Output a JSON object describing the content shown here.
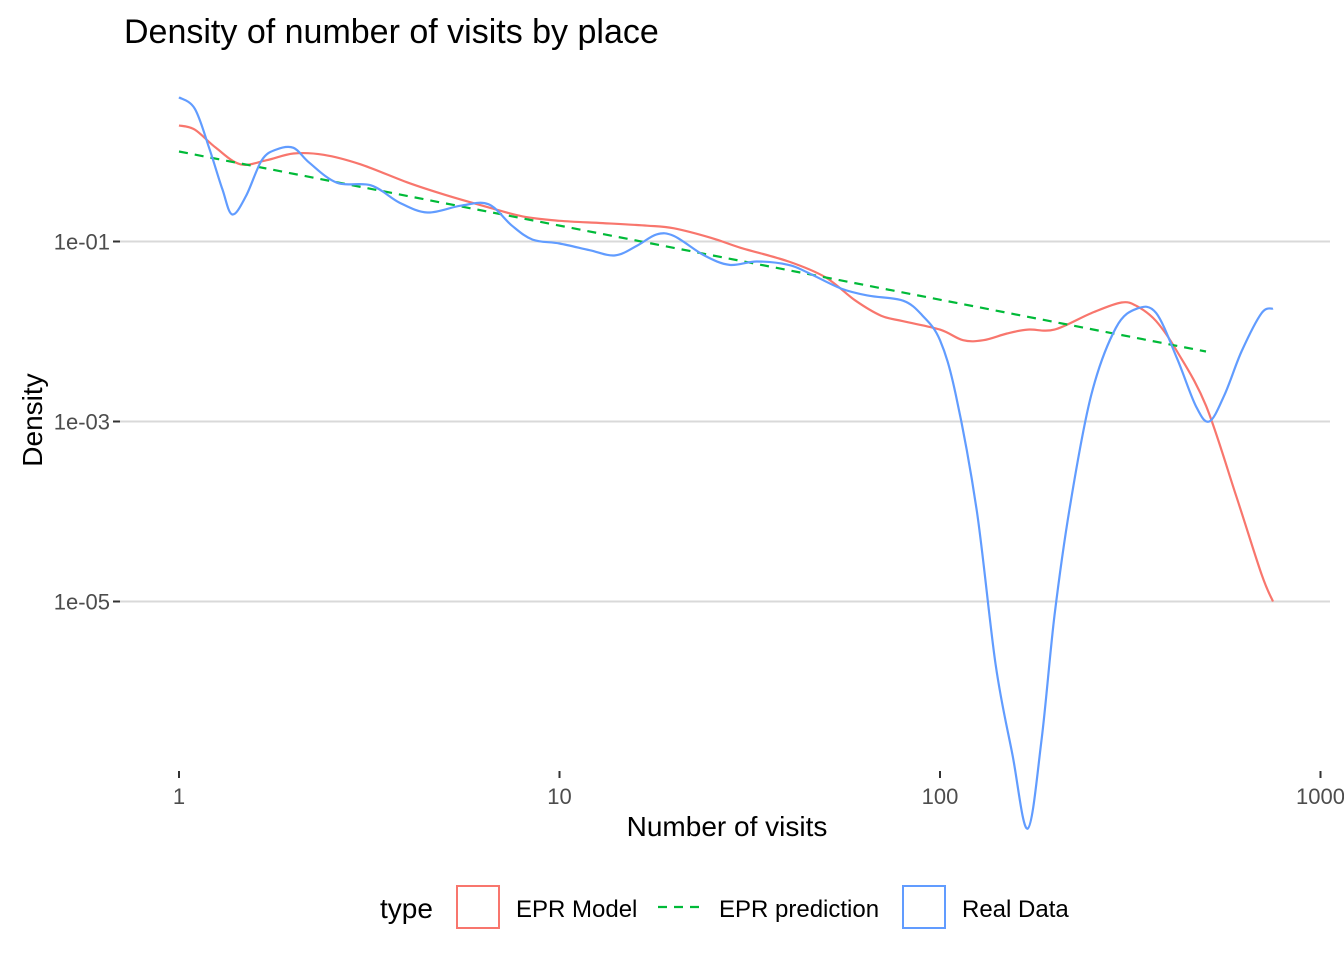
{
  "chart_data": {
    "type": "line",
    "title": "Density of number of visits by place",
    "xlabel": "Number of visits",
    "ylabel": "Density",
    "xscale": "log10",
    "yscale": "log10",
    "xlim": [
      0.9,
      1000
    ],
    "ylim": [
      5e-08,
      8
    ],
    "xticks": [
      1,
      10,
      100,
      1000
    ],
    "xtick_labels": [
      "1",
      "10",
      "100",
      "1000"
    ],
    "yticks": [
      0.1,
      0.001,
      1e-05
    ],
    "ytick_labels": [
      "1e-01",
      "1e-03",
      "1e-05"
    ],
    "grid": true,
    "legend": {
      "title": "type",
      "position": "bottom",
      "entries": [
        "EPR Model",
        "EPR prediction",
        "Real Data"
      ]
    },
    "series": [
      {
        "name": "EPR Model",
        "color": "#F8766D",
        "dash": "solid",
        "points": [
          [
            1,
            1.95
          ],
          [
            1.1,
            1.75
          ],
          [
            1.25,
            1.1
          ],
          [
            1.45,
            0.72
          ],
          [
            1.7,
            0.8
          ],
          [
            2,
            0.95
          ],
          [
            2.4,
            0.92
          ],
          [
            3,
            0.72
          ],
          [
            4,
            0.45
          ],
          [
            5,
            0.33
          ],
          [
            6.5,
            0.24
          ],
          [
            8,
            0.19
          ],
          [
            10,
            0.17
          ],
          [
            13,
            0.16
          ],
          [
            17,
            0.15
          ],
          [
            20,
            0.14
          ],
          [
            25,
            0.11
          ],
          [
            30,
            0.085
          ],
          [
            40,
            0.06
          ],
          [
            50,
            0.04
          ],
          [
            60,
            0.022
          ],
          [
            70,
            0.015
          ],
          [
            80,
            0.013
          ],
          [
            100,
            0.0105
          ],
          [
            115,
            0.008
          ],
          [
            130,
            0.008
          ],
          [
            150,
            0.0095
          ],
          [
            170,
            0.0105
          ],
          [
            200,
            0.0105
          ],
          [
            250,
            0.016
          ],
          [
            300,
            0.021
          ],
          [
            330,
            0.019
          ],
          [
            370,
            0.013
          ],
          [
            420,
            0.006
          ],
          [
            500,
            0.0015
          ],
          [
            600,
            0.00015
          ],
          [
            700,
            2e-05
          ],
          [
            750,
            1e-05
          ]
        ]
      },
      {
        "name": "EPR prediction",
        "color": "#00BA38",
        "dash": "dashed",
        "points": [
          [
            1,
            1.0
          ],
          [
            500,
            0.006
          ]
        ]
      },
      {
        "name": "Real Data",
        "color": "#619CFF",
        "dash": "solid",
        "points": [
          [
            1,
            4.0
          ],
          [
            1.1,
            3.0
          ],
          [
            1.2,
            1.1
          ],
          [
            1.3,
            0.38
          ],
          [
            1.38,
            0.2
          ],
          [
            1.5,
            0.32
          ],
          [
            1.65,
            0.8
          ],
          [
            1.8,
            1.05
          ],
          [
            2,
            1.1
          ],
          [
            2.2,
            0.75
          ],
          [
            2.6,
            0.45
          ],
          [
            3.2,
            0.42
          ],
          [
            3.8,
            0.27
          ],
          [
            4.5,
            0.21
          ],
          [
            5.5,
            0.25
          ],
          [
            6.5,
            0.26
          ],
          [
            7.5,
            0.15
          ],
          [
            8.5,
            0.105
          ],
          [
            10,
            0.095
          ],
          [
            12,
            0.08
          ],
          [
            14,
            0.07
          ],
          [
            16,
            0.09
          ],
          [
            18,
            0.12
          ],
          [
            20,
            0.115
          ],
          [
            24,
            0.07
          ],
          [
            28,
            0.055
          ],
          [
            33,
            0.06
          ],
          [
            40,
            0.055
          ],
          [
            45,
            0.045
          ],
          [
            55,
            0.03
          ],
          [
            65,
            0.025
          ],
          [
            80,
            0.022
          ],
          [
            90,
            0.015
          ],
          [
            100,
            0.008
          ],
          [
            110,
            0.002
          ],
          [
            125,
            0.0001
          ],
          [
            140,
            2e-06
          ],
          [
            155,
            2e-07
          ],
          [
            170,
            3e-08
          ],
          [
            185,
            3e-07
          ],
          [
            200,
            7e-06
          ],
          [
            220,
            0.00012
          ],
          [
            250,
            0.002
          ],
          [
            290,
            0.011
          ],
          [
            330,
            0.018
          ],
          [
            370,
            0.016
          ],
          [
            420,
            0.005
          ],
          [
            470,
            0.0015
          ],
          [
            510,
            0.001
          ],
          [
            560,
            0.002
          ],
          [
            620,
            0.006
          ],
          [
            700,
            0.016
          ],
          [
            750,
            0.018
          ]
        ]
      }
    ]
  }
}
